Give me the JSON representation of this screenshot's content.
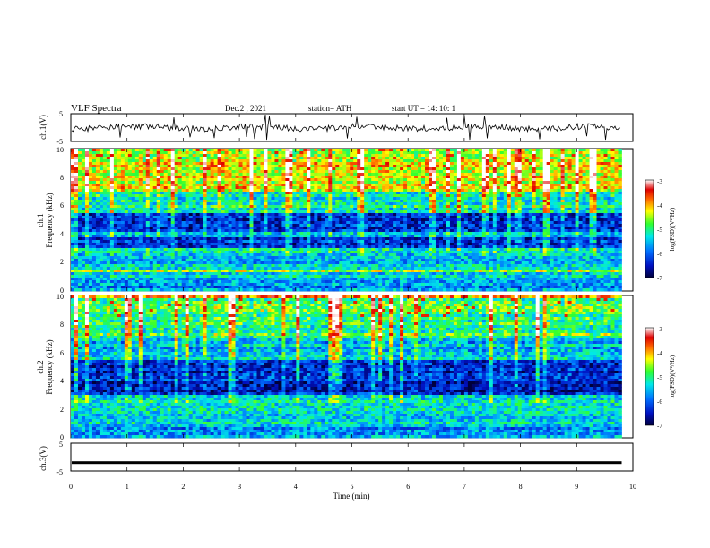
{
  "header": {
    "title": "VLF Spectra",
    "date": "Dec.2 , 2021",
    "station": "station= ATH",
    "start": "start UT = 14: 10: 1"
  },
  "chart_data": [
    {
      "type": "line",
      "title": "",
      "ylabel": "ch.1(V)",
      "ylim": [
        -5,
        5
      ],
      "yticks": [
        "5",
        "-5"
      ],
      "baseline": 0,
      "description_level": "noisy waveform with impulsive spikes"
    },
    {
      "type": "heatmap",
      "ylabel": "ch.1\nFrequency (kHz)",
      "ylim": [
        0,
        10
      ],
      "yticks": [
        "10",
        "8",
        "6",
        "4",
        "2",
        "0"
      ],
      "colorbar": {
        "label": "log(PSD)(V²/Hz)",
        "min": -7,
        "max": -3,
        "ticks": [
          "-3",
          "-4",
          "-5",
          "-6",
          "-7"
        ]
      }
    },
    {
      "type": "heatmap",
      "ylabel": "ch.2\nFrequency (kHz)",
      "ylim": [
        0,
        10
      ],
      "yticks": [
        "10",
        "8",
        "6",
        "4",
        "2",
        "0"
      ],
      "colorbar": {
        "label": "log(PSD)(V²/Hz)",
        "min": -7,
        "max": -3,
        "ticks": [
          "-3",
          "-4",
          "-5",
          "-6",
          "-7"
        ]
      }
    },
    {
      "type": "line",
      "ylabel": "ch.3(V)",
      "ylim": [
        -5,
        5
      ],
      "yticks": [
        "5",
        "-5"
      ],
      "constant_value": -2,
      "xlabel": "Time (min)",
      "xlim": [
        0,
        10
      ],
      "xticks": [
        "0",
        "1",
        "2",
        "3",
        "4",
        "5",
        "6",
        "7",
        "8",
        "9",
        "10"
      ],
      "data_end": 9.8
    }
  ],
  "colors": {
    "colormap": [
      "#00007a",
      "#0018d8",
      "#0080ff",
      "#00e0f0",
      "#30ff30",
      "#ffff00",
      "#ff7a00",
      "#e00000",
      "#ffffff"
    ]
  }
}
